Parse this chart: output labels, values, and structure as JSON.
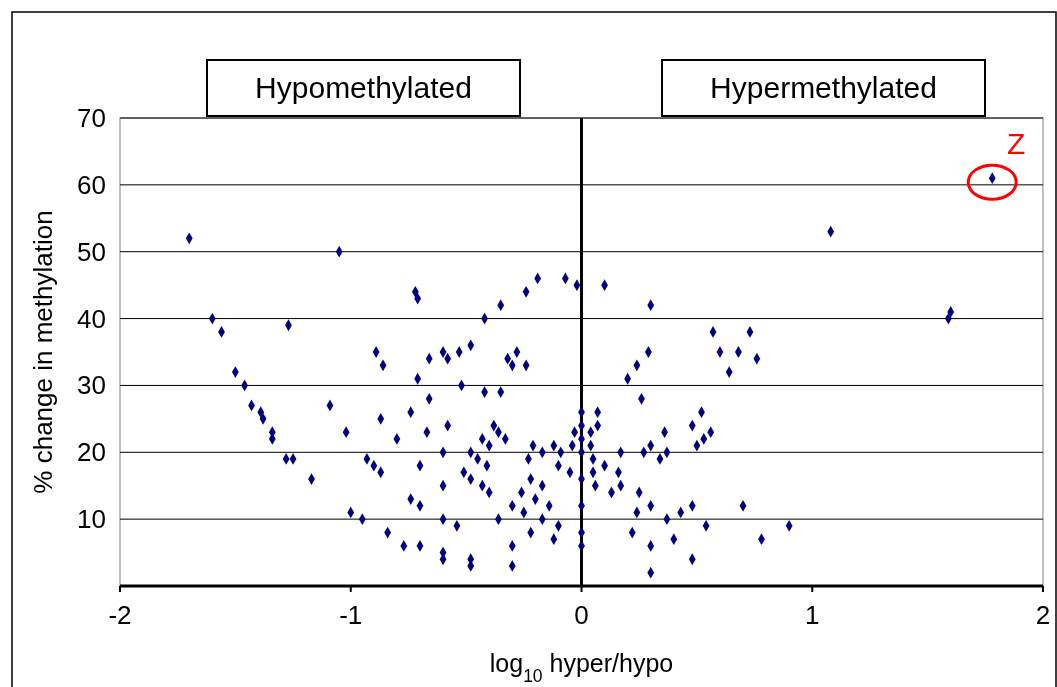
{
  "chart_data": {
    "type": "scatter",
    "xlabel": "log$_{10}$ hyper/hypo",
    "ylabel": "% change in methylation",
    "annotations": [
      "Hypomethylated",
      "Hypermethylated",
      {
        "text": "Z",
        "x": 1.78,
        "y": 61
      }
    ],
    "xlim": [
      -2,
      2
    ],
    "xticks": [
      -2,
      -1,
      0,
      1,
      2
    ],
    "ylim": [
      0,
      70
    ],
    "yticks": [
      10,
      20,
      30,
      40,
      50,
      60,
      70
    ],
    "grid": "y",
    "marker": "diamond",
    "ref_lines": [
      {
        "axis": "x",
        "value": 0,
        "color": "#000000"
      }
    ],
    "series": [
      {
        "color": "#000080",
        "x": [
          -1.7,
          -1.05,
          -1.6,
          -1.56,
          -1.27,
          -1.5,
          -1.46,
          -1.43,
          -1.39,
          -1.38,
          -1.34,
          -1.34,
          -1.28,
          -1.25,
          -1.17,
          -1.09,
          -1.02,
          -1.0,
          -0.95,
          -0.93,
          -0.9,
          -0.87,
          -0.89,
          -0.86,
          -0.87,
          -0.84,
          -0.8,
          -0.77,
          -0.74,
          -0.74,
          -0.7,
          -0.7,
          -0.72,
          -0.71,
          -0.71,
          -0.7,
          -0.67,
          -0.66,
          -0.66,
          -0.6,
          -0.58,
          -0.6,
          -0.6,
          -0.6,
          -0.6,
          -0.6,
          -0.58,
          -0.54,
          -0.53,
          -0.52,
          -0.51,
          -0.48,
          -0.48,
          -0.48,
          -0.48,
          -0.48,
          -0.45,
          -0.43,
          -0.42,
          -0.42,
          -0.43,
          -0.41,
          -0.4,
          -0.4,
          -0.38,
          -0.36,
          -0.36,
          -0.35,
          -0.35,
          -0.33,
          -0.32,
          -0.28,
          -0.3,
          -0.3,
          -0.3,
          -0.3,
          -0.26,
          -0.24,
          -0.24,
          -0.23,
          -0.25,
          -0.22,
          -0.22,
          -0.21,
          -0.2,
          -0.19,
          -0.17,
          -0.17,
          -0.17,
          -0.14,
          -0.12,
          -0.12,
          -0.1,
          -0.1,
          -0.09,
          -0.07,
          -0.05,
          -0.04,
          -0.03,
          -0.02,
          0.0,
          0.0,
          0.0,
          0.0,
          0.0,
          0.0,
          0.0,
          0.0,
          0.1,
          0.3,
          0.04,
          0.04,
          0.07,
          0.07,
          0.05,
          0.05,
          0.06,
          0.1,
          0.13,
          0.16,
          0.17,
          0.17,
          0.2,
          0.24,
          0.29,
          0.26,
          0.22,
          0.24,
          0.25,
          0.27,
          0.3,
          0.3,
          0.3,
          0.3,
          0.34,
          0.36,
          0.37,
          0.37,
          0.4,
          0.43,
          0.48,
          0.48,
          0.48,
          0.5,
          0.52,
          0.53,
          0.54,
          0.56,
          0.57,
          0.6,
          0.64,
          0.68,
          0.73,
          0.76,
          0.7,
          0.78,
          0.9,
          1.08,
          1.59,
          1.6,
          1.78
        ],
        "values": [
          52,
          50,
          40,
          38,
          39,
          32,
          30,
          27,
          26,
          25,
          23,
          22,
          19,
          19,
          16,
          27,
          23,
          11,
          10,
          19,
          18,
          17,
          35,
          33,
          25,
          8,
          22,
          6,
          26,
          13,
          12,
          6,
          44,
          43,
          31,
          18,
          23,
          34,
          28,
          35,
          34,
          20,
          15,
          10,
          5,
          4,
          24,
          9,
          35,
          30,
          17,
          36,
          20,
          16,
          4,
          3,
          19,
          15,
          40,
          29,
          22,
          18,
          21,
          14,
          24,
          10,
          23,
          42,
          29,
          22,
          34,
          35,
          33,
          12,
          6,
          3,
          14,
          33,
          44,
          19,
          11,
          16,
          8,
          21,
          13,
          46,
          20,
          15,
          10,
          12,
          21,
          7,
          18,
          9,
          20,
          46,
          17,
          21,
          23,
          45,
          26,
          24,
          22,
          20,
          16,
          12,
          8,
          6,
          45,
          42,
          23,
          21,
          26,
          24,
          19,
          17,
          15,
          18,
          14,
          17,
          20,
          15,
          31,
          33,
          35,
          28,
          8,
          11,
          14,
          20,
          21,
          12,
          6,
          2,
          19,
          23,
          20,
          10,
          7,
          11,
          24,
          12,
          4,
          21,
          26,
          22,
          9,
          23,
          38,
          35,
          32,
          35,
          38,
          34,
          12,
          7,
          9,
          53,
          40,
          41,
          61
        ]
      }
    ]
  }
}
